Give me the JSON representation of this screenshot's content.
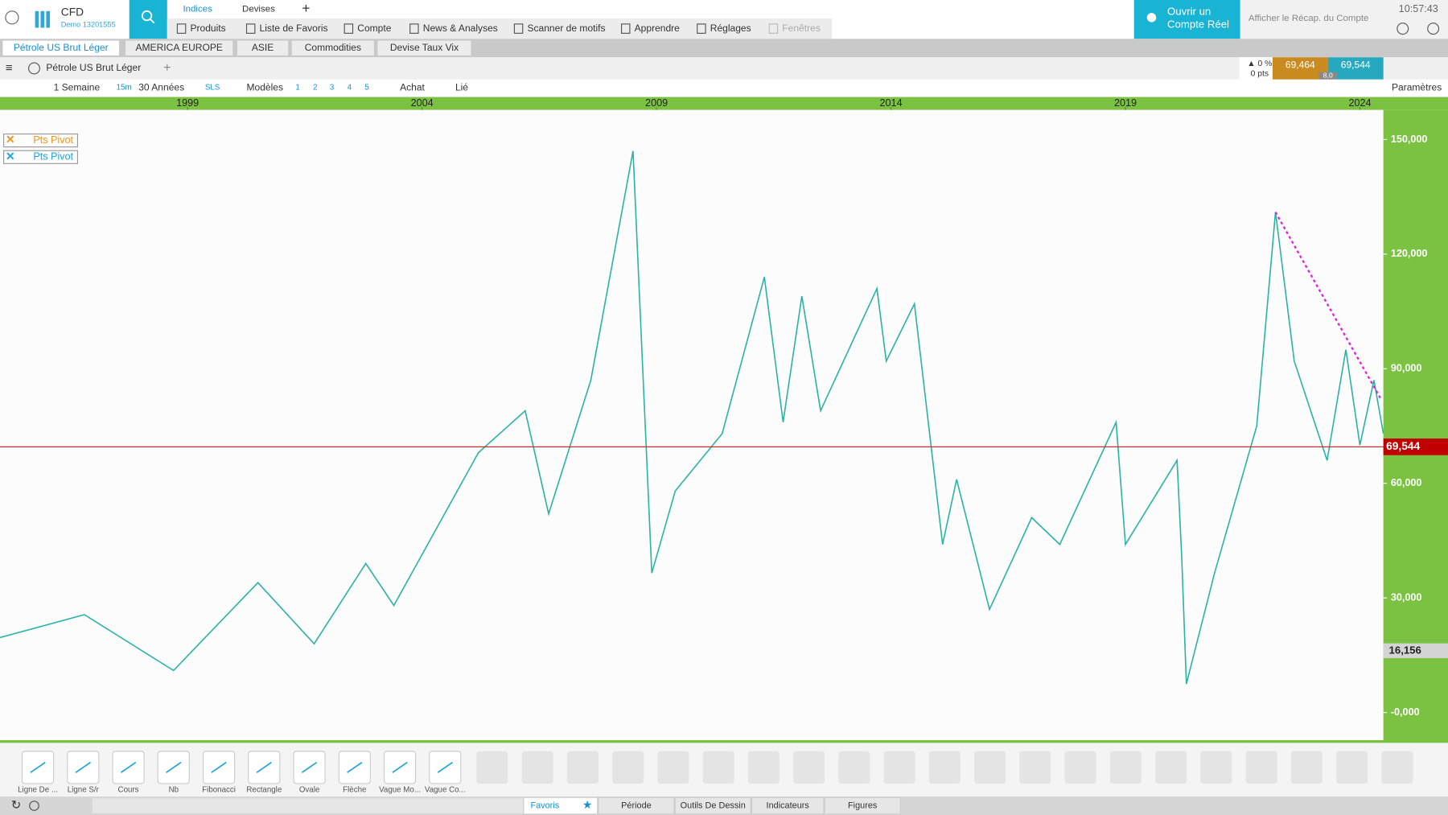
{
  "header": {
    "app": "CFD",
    "account": "Demo 13201555",
    "tabs": [
      "Indices",
      "Devises"
    ],
    "menu": [
      "Produits",
      "Liste de Favoris",
      "Compte",
      "News & Analyses",
      "Scanner de motifs",
      "Apprendre",
      "Réglages",
      "Fenêtres"
    ],
    "cta": [
      "Ouvrir un",
      "Compte Réel"
    ],
    "summary": "Afficher le Récap. du Compte",
    "clock": "10:57:43"
  },
  "watchlist_tabs": [
    "Pétrole US Brut Léger",
    "AMERICA EUROPE",
    "ASIE",
    "Commodities",
    "Devise Taux Vix"
  ],
  "chart_header": {
    "instrument": "Pétrole US Brut Léger",
    "change": "▲ 0 %",
    "points": "0 pts",
    "bid": "69,464",
    "ask": "69,544",
    "spread": "8,0"
  },
  "toolbar": [
    "1 Semaine",
    "15m",
    "30 Années",
    "SLS",
    "Modèles",
    "1",
    "2",
    "3",
    "4",
    "5",
    "Achat",
    "Lié"
  ],
  "settings": "Paramètres",
  "chart_data": {
    "type": "line",
    "indicators": [
      "Pts Pivot",
      "Pts Pivot"
    ],
    "x": [
      1995,
      1996.8,
      1998.7,
      2000.5,
      2001.7,
      2002.8,
      2003.4,
      2005.2,
      2006.2,
      2006.7,
      2007.6,
      2008.5,
      2008.9,
      2009.4,
      2010.4,
      2011.3,
      2011.7,
      2012.1,
      2012.5,
      2013.7,
      2013.9,
      2014.5,
      2015.1,
      2015.4,
      2016.1,
      2017.0,
      2017.6,
      2018.8,
      2019.0,
      2020.1,
      2020.2,
      2020.3,
      2020.9,
      2021.8,
      2022.2,
      2022.6,
      2023.3,
      2023.7,
      2024.0,
      2024.3,
      2024.5
    ],
    "values": [
      19.6,
      25.6,
      11,
      34,
      18,
      39,
      28,
      68,
      79,
      52,
      87,
      147,
      36.5,
      58,
      73,
      114,
      76,
      109,
      79,
      111,
      92,
      107,
      44,
      61,
      27,
      51,
      44,
      76,
      44,
      66,
      41,
      7.5,
      36.5,
      75,
      131,
      92,
      66,
      95,
      70,
      87,
      73
    ],
    "color": "#2bb3a3",
    "xlim": [
      1995,
      2024.5
    ],
    "xticks": [
      1999,
      2004,
      2009,
      2014,
      2019,
      2024
    ],
    "ylim": [
      -7,
      157.5
    ],
    "yticks": [
      {
        "value": 0,
        "label": "-0,000"
      },
      {
        "value": 30,
        "label": "30,000"
      },
      {
        "value": 60,
        "label": "60,000"
      },
      {
        "value": 90,
        "label": "90,000"
      },
      {
        "value": 120,
        "label": "120,000"
      },
      {
        "value": 150,
        "label": "150,000"
      }
    ],
    "current_price": {
      "value": 69.544,
      "label": "69,544"
    },
    "marker": {
      "value": 16.156,
      "label": "16,156"
    },
    "trendline": {
      "x": [
        2022.2,
        2024.45
      ],
      "values": [
        131,
        82
      ]
    }
  },
  "drawing_tools": [
    "Ligne De ...",
    "Ligne S/r",
    "Cours",
    "Nb",
    "Fibonacci",
    "Rectangle",
    "Ovale",
    "Flèche",
    "Vague Mo...",
    "Vague Co..."
  ],
  "bottom_tabs": [
    "Favoris",
    "Période",
    "Outils De Dessin",
    "Indicateurs",
    "Figures"
  ]
}
